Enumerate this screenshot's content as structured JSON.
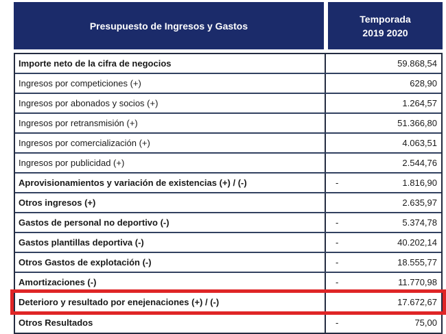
{
  "header": {
    "budget_column_label": "Presupuesto de Ingresos y Gastos",
    "season_column_line1": "Temporada",
    "season_column_line2": "2019 2020"
  },
  "table": {
    "rows": [
      {
        "label": "Importe neto de la cifra de negocios",
        "sign": "",
        "value": "59.868,54",
        "bold": true,
        "highlighted": false
      },
      {
        "label": "Ingresos por competiciones (+)",
        "sign": "",
        "value": "628,90",
        "bold": false,
        "highlighted": false
      },
      {
        "label": "Ingresos por abonados y socios (+)",
        "sign": "",
        "value": "1.264,57",
        "bold": false,
        "highlighted": false
      },
      {
        "label": "Ingresos por retransmisión (+)",
        "sign": "",
        "value": "51.366,80",
        "bold": false,
        "highlighted": false
      },
      {
        "label": "Ingresos por comercialización (+)",
        "sign": "",
        "value": "4.063,51",
        "bold": false,
        "highlighted": false
      },
      {
        "label": "Ingresos por publicidad (+)",
        "sign": "",
        "value": "2.544,76",
        "bold": false,
        "highlighted": false
      },
      {
        "label": "Aprovisionamientos y variación de existencias (+) / (-)",
        "sign": "-",
        "value": "1.816,90",
        "bold": true,
        "highlighted": false
      },
      {
        "label": "Otros ingresos (+)",
        "sign": "",
        "value": "2.635,97",
        "bold": true,
        "highlighted": false
      },
      {
        "label": "Gastos de personal no deportivo (-)",
        "sign": "-",
        "value": "5.374,78",
        "bold": true,
        "highlighted": false
      },
      {
        "label": "Gastos plantillas deportiva (-)",
        "sign": "-",
        "value": "40.202,14",
        "bold": true,
        "highlighted": false
      },
      {
        "label": "Otros Gastos de explotación (-)",
        "sign": "-",
        "value": "18.555,77",
        "bold": true,
        "highlighted": false
      },
      {
        "label": "Amortizaciones (-)",
        "sign": "-",
        "value": "11.770,98",
        "bold": true,
        "highlighted": false
      },
      {
        "label": "Deterioro y resultado por enejenaciones (+) / (-)",
        "sign": "",
        "value": "17.672,67",
        "bold": true,
        "highlighted": true
      },
      {
        "label": "Otros Resultados",
        "sign": "-",
        "value": "75,00",
        "bold": true,
        "highlighted": false
      }
    ]
  },
  "colors": {
    "header_bg": "#1b2b6a",
    "header_text": "#ffffff",
    "outer_border": "#232b40",
    "row_border": "#31405f",
    "text": "#191919",
    "highlight": "#df2526",
    "page_bg": "#ffffff"
  }
}
